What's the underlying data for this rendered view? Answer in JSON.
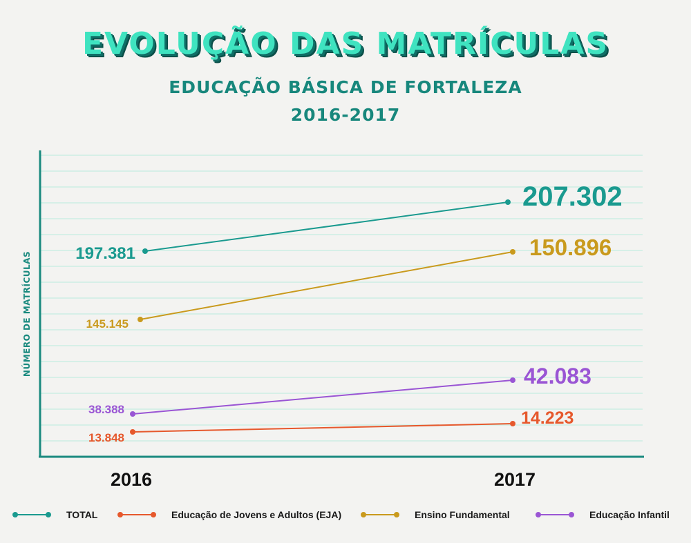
{
  "header": {
    "title": "EVOLUÇÃO DAS MATRÍCULAS",
    "subtitle": "EDUCAÇÃO BÁSICA DE FORTALEZA",
    "period": "2016-2017"
  },
  "colors": {
    "total": "#1a9a8f",
    "eja": "#e6582c",
    "fundamental": "#c99a1d",
    "infantil": "#9a55d4",
    "axis": "#1a8a7f",
    "grid": "#cdeee4"
  },
  "chart_data": {
    "type": "line",
    "x": [
      "2016",
      "2017"
    ],
    "ylabel": "NÚMERO DE MATRÍCULAS",
    "series": [
      {
        "key": "total",
        "name": "TOTAL",
        "values": [
          197381,
          207302
        ],
        "labels": [
          "197.381",
          "207.302"
        ]
      },
      {
        "key": "fundamental",
        "name": "Ensino Fundamental",
        "values": [
          145145,
          150896
        ],
        "labels": [
          "145.145",
          "150.896"
        ]
      },
      {
        "key": "infantil",
        "name": "Educação Infantil",
        "values": [
          38388,
          42083
        ],
        "labels": [
          "38.388",
          "42.083"
        ]
      },
      {
        "key": "eja",
        "name": "Educação de Jovens e Adultos (EJA)",
        "values": [
          13848,
          14223
        ],
        "labels": [
          "13.848",
          "14.223"
        ]
      }
    ],
    "legend_order": [
      "total",
      "eja",
      "fundamental",
      "infantil"
    ],
    "legend_position": "bottom",
    "grid": true
  }
}
